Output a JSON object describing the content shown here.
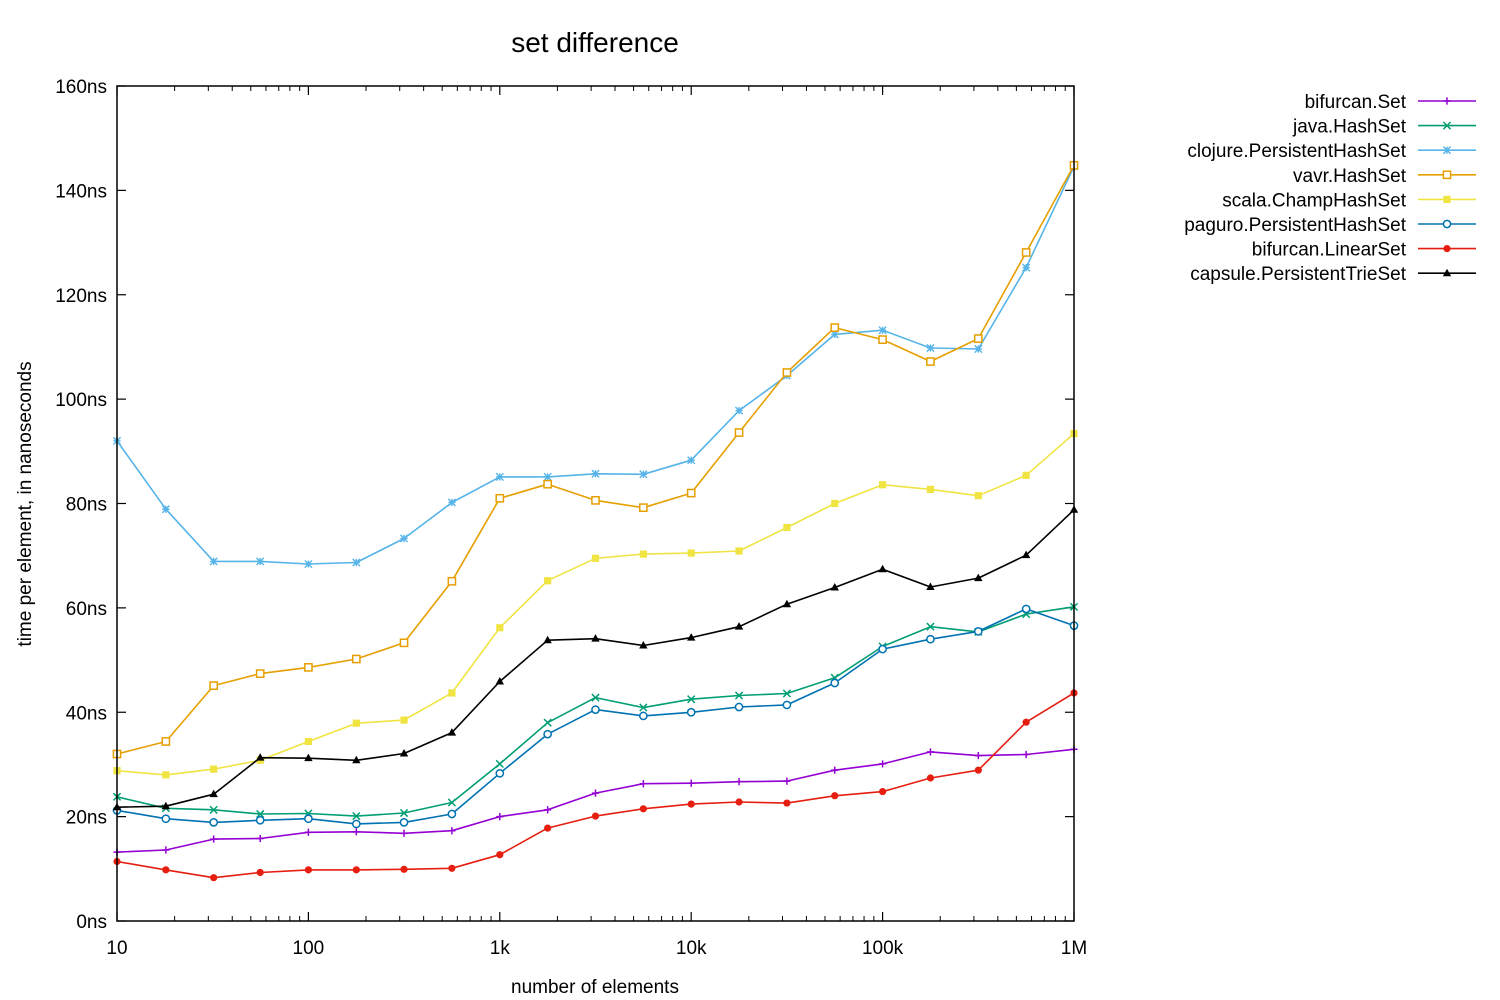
{
  "chart_data": {
    "type": "line",
    "title": "set difference",
    "xlabel": "number of elements",
    "ylabel": "time per element, in nanoseconds",
    "xscale": "log",
    "xlim": [
      10,
      1000000
    ],
    "ylim": [
      0,
      160
    ],
    "xticks": [
      {
        "value": 10,
        "label": "10"
      },
      {
        "value": 100,
        "label": "100"
      },
      {
        "value": 1000,
        "label": "1k"
      },
      {
        "value": 10000,
        "label": "10k"
      },
      {
        "value": 100000,
        "label": "100k"
      },
      {
        "value": 1000000,
        "label": "1M"
      }
    ],
    "yticks": [
      {
        "value": 0,
        "label": "0ns"
      },
      {
        "value": 20,
        "label": "20ns"
      },
      {
        "value": 40,
        "label": "40ns"
      },
      {
        "value": 60,
        "label": "60ns"
      },
      {
        "value": 80,
        "label": "80ns"
      },
      {
        "value": 100,
        "label": "100ns"
      },
      {
        "value": 120,
        "label": "120ns"
      },
      {
        "value": 140,
        "label": "140ns"
      },
      {
        "value": 160,
        "label": "160ns"
      }
    ],
    "grid": false,
    "legend_position": "outside-top-right",
    "x": [
      10,
      18,
      32,
      56,
      100,
      178,
      316,
      562,
      1000,
      1778,
      3162,
      5623,
      10000,
      17783,
      31623,
      56234,
      100000,
      177828,
      316228,
      562341,
      1000000
    ],
    "series": [
      {
        "name": "bifurcan.Set",
        "color": "#9400d3",
        "marker": "plus",
        "values": [
          13.2,
          13.6,
          15.7,
          15.8,
          17.0,
          17.1,
          16.8,
          17.3,
          20.0,
          21.3,
          24.5,
          26.3,
          26.4,
          26.7,
          26.8,
          28.9,
          30.1,
          32.4,
          31.7,
          31.9,
          32.9
        ]
      },
      {
        "name": "java.HashSet",
        "color": "#009e73",
        "marker": "x",
        "values": [
          23.8,
          21.6,
          21.3,
          20.5,
          20.6,
          20.1,
          20.7,
          22.7,
          30.1,
          38.0,
          42.8,
          40.9,
          42.5,
          43.2,
          43.6,
          46.6,
          52.6,
          56.4,
          55.4,
          58.8,
          60.2
        ]
      },
      {
        "name": "clojure.PersistentHashSet",
        "color": "#56b4e9",
        "marker": "star",
        "values": [
          92.0,
          78.9,
          68.9,
          68.9,
          68.4,
          68.7,
          73.3,
          80.2,
          85.1,
          85.1,
          85.7,
          85.6,
          88.3,
          97.8,
          104.5,
          112.4,
          113.2,
          109.8,
          109.6,
          125.2,
          144.6
        ]
      },
      {
        "name": "vavr.HashSet",
        "color": "#e69f00",
        "marker": "open-square",
        "values": [
          32.0,
          34.4,
          45.1,
          47.4,
          48.6,
          50.2,
          53.3,
          65.1,
          81.0,
          83.7,
          80.6,
          79.2,
          82.0,
          93.6,
          105.1,
          113.7,
          111.4,
          107.2,
          111.6,
          128.1,
          144.8
        ]
      },
      {
        "name": "scala.ChampHashSet",
        "color": "#f0e442",
        "marker": "filled-square",
        "values": [
          28.8,
          28.0,
          29.1,
          30.8,
          34.4,
          37.9,
          38.5,
          43.7,
          56.2,
          65.2,
          69.5,
          70.3,
          70.5,
          70.9,
          75.4,
          80.0,
          83.6,
          82.7,
          81.5,
          85.4,
          93.4
        ]
      },
      {
        "name": "paguro.PersistentHashSet",
        "color": "#0072b2",
        "marker": "open-circle",
        "values": [
          21.2,
          19.6,
          18.9,
          19.3,
          19.6,
          18.6,
          18.9,
          20.5,
          28.3,
          35.8,
          40.5,
          39.3,
          40.0,
          41.0,
          41.4,
          45.6,
          52.1,
          54.0,
          55.5,
          59.8,
          56.6
        ]
      },
      {
        "name": "bifurcan.LinearSet",
        "color": "#e51e10",
        "marker": "filled-circle",
        "values": [
          11.4,
          9.8,
          8.3,
          9.3,
          9.8,
          9.8,
          9.9,
          10.1,
          12.7,
          17.8,
          20.1,
          21.5,
          22.4,
          22.8,
          22.6,
          24.0,
          24.8,
          27.4,
          28.9,
          38.1,
          43.7
        ]
      },
      {
        "name": "capsule.PersistentTrieSet",
        "color": "#000000",
        "marker": "triangle",
        "values": [
          21.8,
          22.0,
          24.3,
          31.3,
          31.2,
          30.8,
          32.1,
          36.1,
          45.9,
          53.8,
          54.1,
          52.8,
          54.3,
          56.4,
          60.7,
          63.9,
          67.4,
          64.0,
          65.7,
          70.1,
          78.8
        ]
      }
    ]
  }
}
